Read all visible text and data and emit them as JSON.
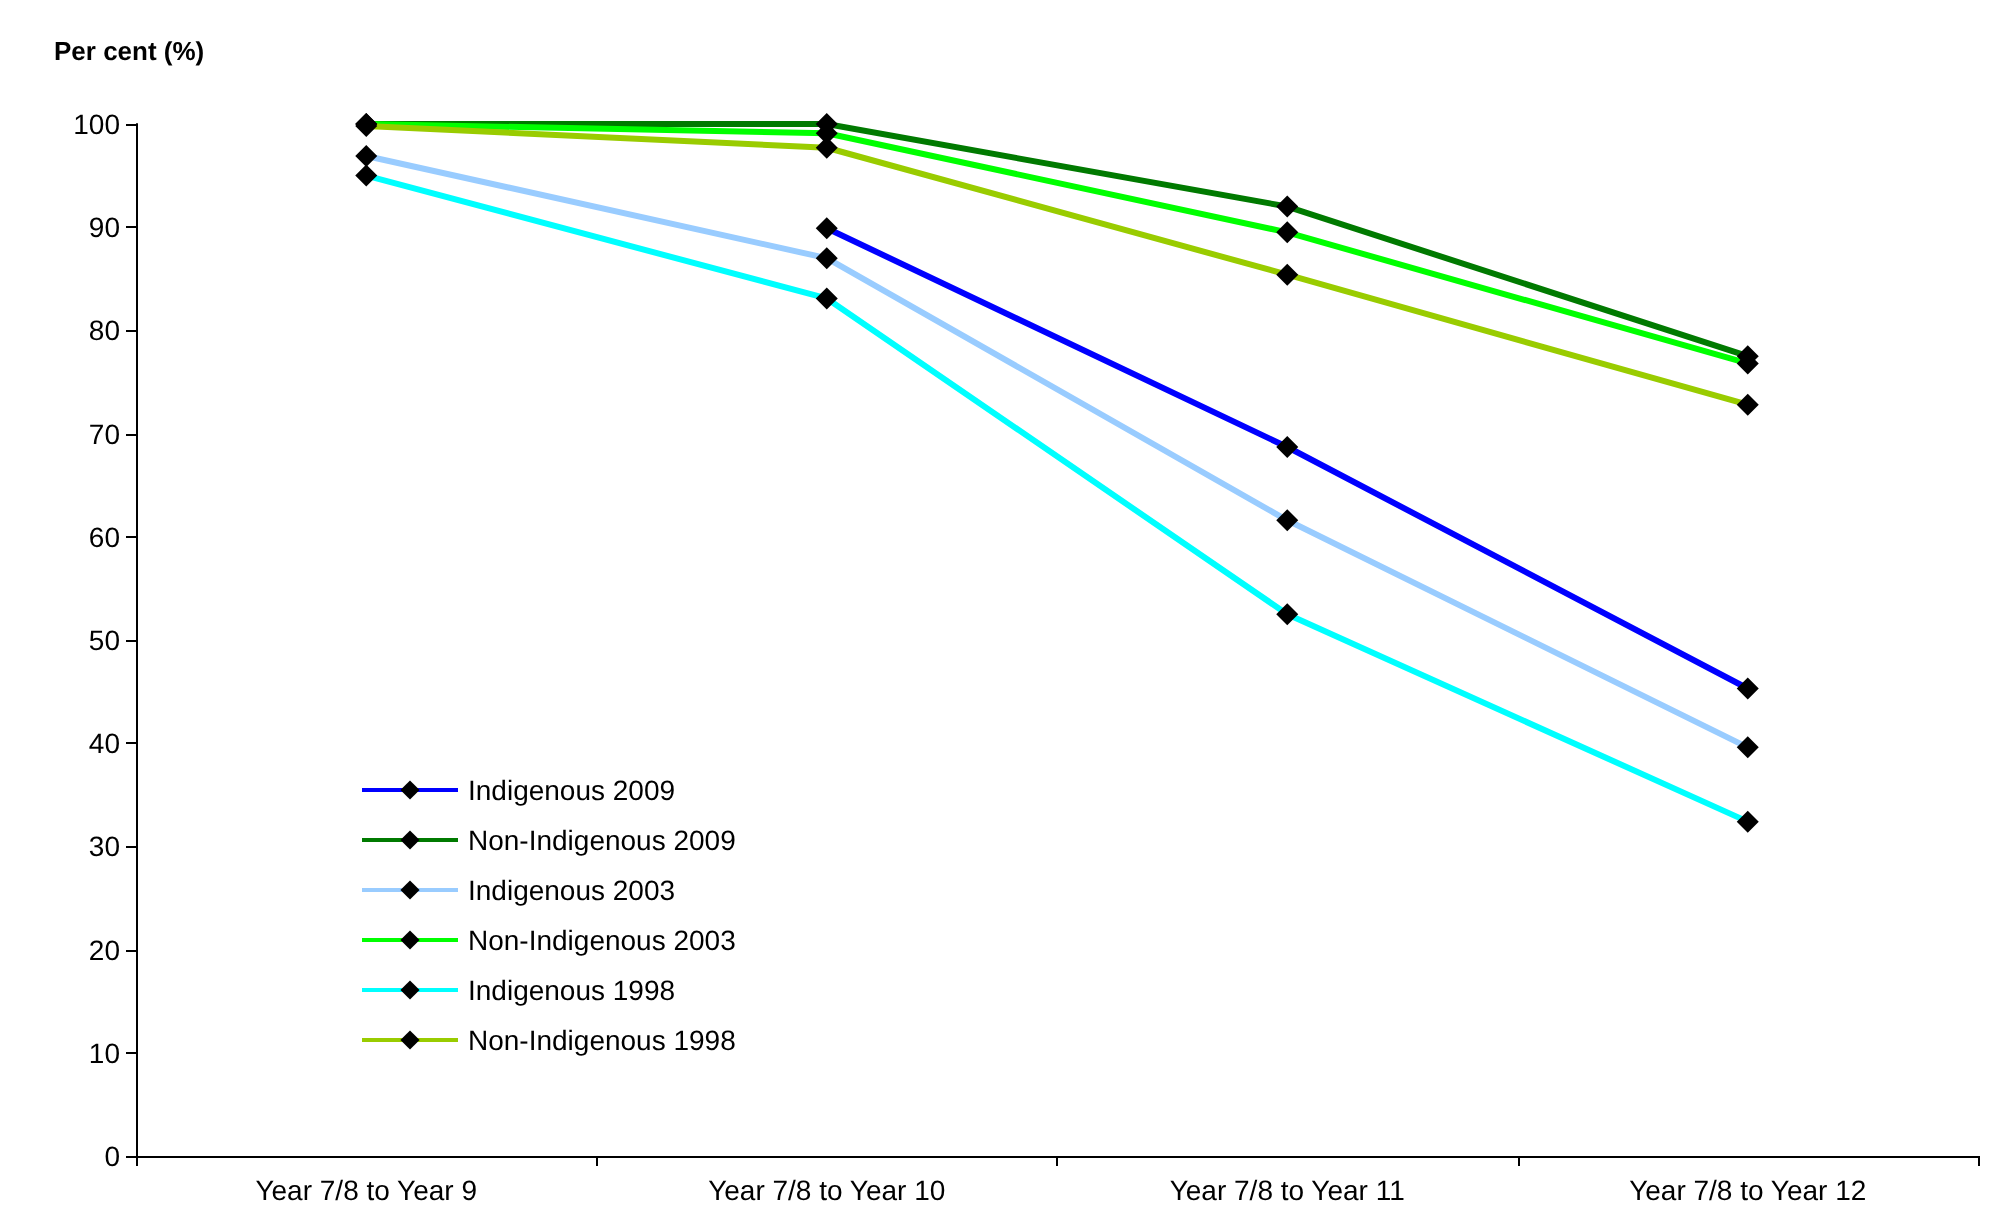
{
  "chart_data": {
    "type": "line",
    "ylabel": "Per cent (%)",
    "categories": [
      "Year 7/8 to Year 9",
      "Year 7/8 to Year 10",
      "Year 7/8 to Year 11",
      "Year 7/8 to Year 12"
    ],
    "series": [
      {
        "name": "Indigenous 2009",
        "color": "#0000ff",
        "values": [
          null,
          89.9,
          68.7,
          45.3
        ]
      },
      {
        "name": "Non-Indigenous 2009",
        "color": "#007a00",
        "values": [
          100,
          100,
          92.0,
          77.5
        ]
      },
      {
        "name": "Indigenous 2003",
        "color": "#99ccff",
        "values": [
          96.9,
          87.0,
          61.6,
          39.6
        ]
      },
      {
        "name": "Non-Indigenous 2003",
        "color": "#00ff00",
        "values": [
          100,
          99.1,
          89.5,
          76.8
        ]
      },
      {
        "name": "Indigenous 1998",
        "color": "#00ffff",
        "values": [
          95.0,
          83.1,
          52.5,
          32.4
        ]
      },
      {
        "name": "Non-Indigenous 1998",
        "color": "#99cc00",
        "values": [
          99.8,
          97.7,
          85.4,
          72.8
        ]
      }
    ],
    "ylim": [
      0,
      100
    ],
    "yticks": [
      0,
      10,
      20,
      30,
      40,
      50,
      60,
      70,
      80,
      90,
      100
    ],
    "grid": false,
    "legend": "bottom left",
    "marker": "diamond",
    "line_style": "solid"
  }
}
